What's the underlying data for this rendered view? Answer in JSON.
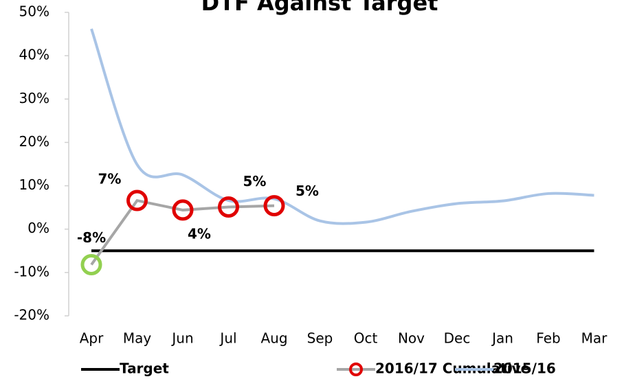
{
  "chart_data": {
    "type": "line",
    "title": "DTF Against Target",
    "categories": [
      "Apr",
      "May",
      "Jun",
      "Jul",
      "Aug",
      "Sep",
      "Oct",
      "Nov",
      "Dec",
      "Jan",
      "Feb",
      "Mar"
    ],
    "series": [
      {
        "name": "Target",
        "color": "#000000",
        "values": [
          -5,
          -5,
          -5,
          -5,
          -5,
          -5,
          -5,
          -5,
          -5,
          -5,
          -5,
          -5
        ]
      },
      {
        "name": "2016/17 Cumulative",
        "color": "#a6a6a6",
        "marker_colors": [
          "#92d050",
          "#e00000",
          "#e00000",
          "#e00000",
          "#e00000",
          null,
          null,
          null,
          null,
          null,
          null,
          null
        ],
        "values": [
          -8.2,
          6.6,
          4.4,
          5.1,
          5.4,
          null,
          null,
          null,
          null,
          null,
          null,
          null
        ],
        "value_labels": [
          "-8%",
          "7%",
          "4%",
          "5%",
          "5%",
          null,
          null,
          null,
          null,
          null,
          null,
          null
        ]
      },
      {
        "name": "2015/16",
        "color": "#a9c4e6",
        "smooth": true,
        "values": [
          46.2,
          14.9,
          12.5,
          6.6,
          7.0,
          1.9,
          1.6,
          4.1,
          5.9,
          6.5,
          8.2,
          7.8
        ]
      }
    ],
    "ylim": [
      -20,
      50
    ],
    "yticks": [
      {
        "value": -20,
        "label": "-20%"
      },
      {
        "value": -10,
        "label": "-10%"
      },
      {
        "value": 0,
        "label": "0%"
      },
      {
        "value": 10,
        "label": "10%"
      },
      {
        "value": 20,
        "label": "20%"
      },
      {
        "value": 30,
        "label": "30%"
      },
      {
        "value": 40,
        "label": "40%"
      },
      {
        "value": 50,
        "label": "50%"
      }
    ],
    "grid": false,
    "legend": "bottom"
  }
}
